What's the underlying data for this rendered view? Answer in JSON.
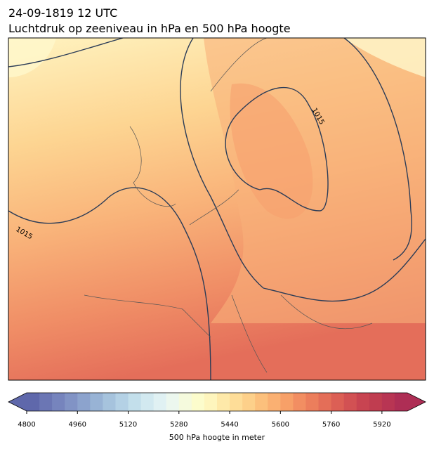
{
  "chart_data": {
    "type": "contour-map",
    "title": "24-09-1819 12 UTC",
    "subtitle": "Luchtdruk op zeeniveau in hPa en 500 hPa hoogte",
    "contour_labels": [
      1015,
      1015
    ],
    "colorbar": {
      "label": "500 hPa hoogte in meter",
      "xlim": [
        4800,
        6000
      ],
      "xticks": [
        4800,
        4960,
        5120,
        5280,
        5440,
        5600,
        5760,
        5920
      ],
      "colors": [
        "#5f68ab",
        "#6b76b4",
        "#7684bd",
        "#8193c5",
        "#8ca3cd",
        "#98b3d5",
        "#a6c3dd",
        "#b4d1e5",
        "#c3dfeb",
        "#d2e9f0",
        "#e0f1f3",
        "#ecf7ee",
        "#f5fadd",
        "#fcfccc",
        "#fef5bd",
        "#fee9a9",
        "#fedd98",
        "#fdd08a",
        "#fcc07c",
        "#fab072",
        "#f7a068",
        "#f28e62",
        "#ec7e5c",
        "#e46e58",
        "#dc5f55",
        "#d25153",
        "#c84451",
        "#c03d50",
        "#b83553",
        "#ae2e55"
      ]
    }
  }
}
